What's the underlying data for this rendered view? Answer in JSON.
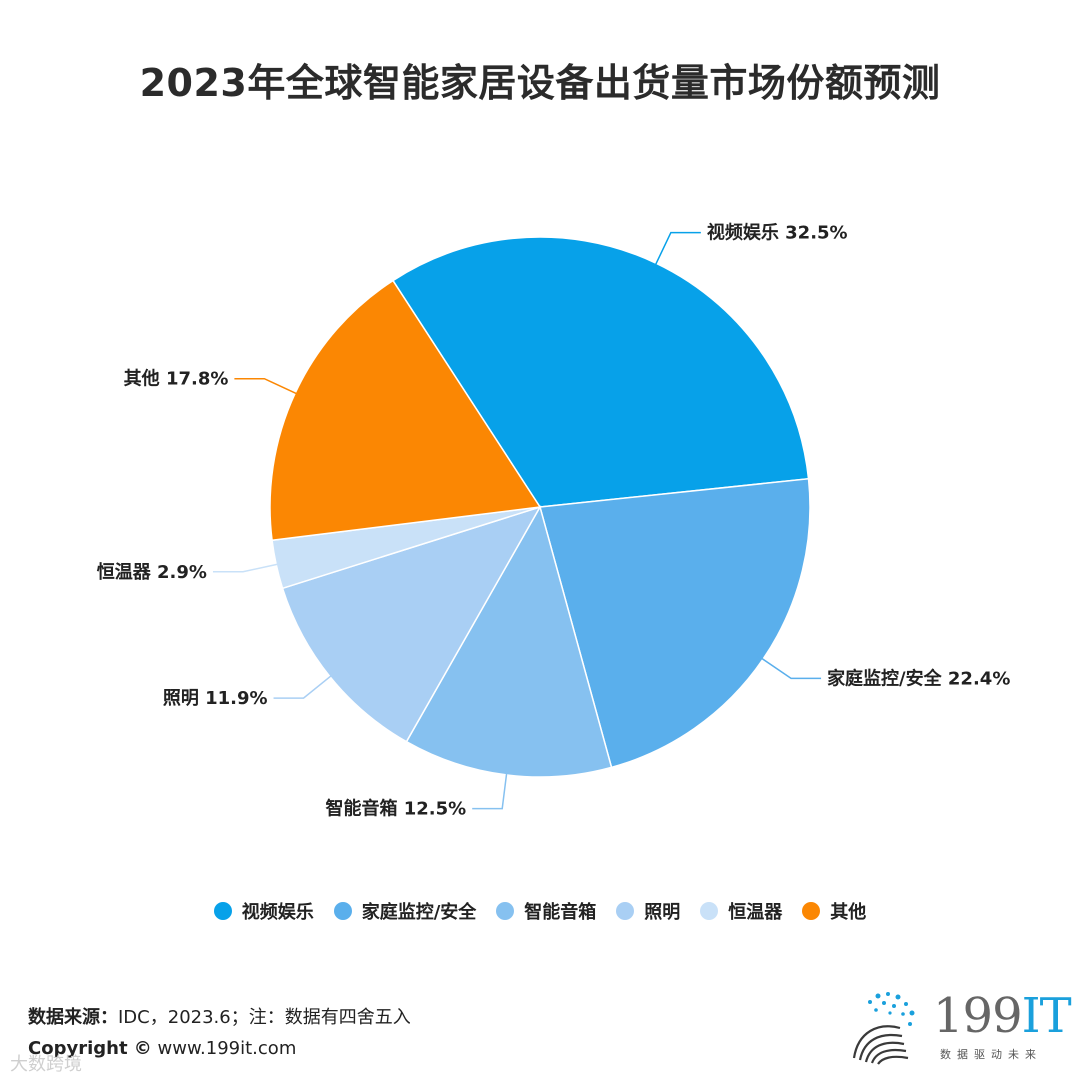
{
  "chart_data": {
    "type": "pie",
    "title": "2023年全球智能家居设备出货量市场份额预测",
    "slices": [
      {
        "name": "视频娱乐",
        "value": 32.5,
        "label": "视频娱乐 32.5%",
        "color": "#07a1e9"
      },
      {
        "name": "家庭监控/安全",
        "value": 22.4,
        "label": "家庭监控/安全 22.4%",
        "color": "#5aafec"
      },
      {
        "name": "智能音箱",
        "value": 12.5,
        "label": "智能音箱 12.5%",
        "color": "#86c1f0"
      },
      {
        "name": "照明",
        "value": 11.9,
        "label": "照明 11.9%",
        "color": "#a9cff4"
      },
      {
        "name": "恒温器",
        "value": 2.9,
        "label": "恒温器 2.9%",
        "color": "#c9e1f8"
      },
      {
        "name": "其他",
        "value": 17.8,
        "label": "其他 17.8%",
        "color": "#fb8703"
      }
    ],
    "legend_position": "bottom"
  },
  "footer": {
    "source_label": "数据来源：",
    "source_text": "IDC，2023.6；注：数据有四舍五入",
    "copyright_label": "Copyright ©",
    "copyright_text": " www.199it.com",
    "watermark": "大数跨境"
  },
  "logo": {
    "numerals": "199",
    "letters": "IT",
    "tagline": "数据驱动未来"
  }
}
